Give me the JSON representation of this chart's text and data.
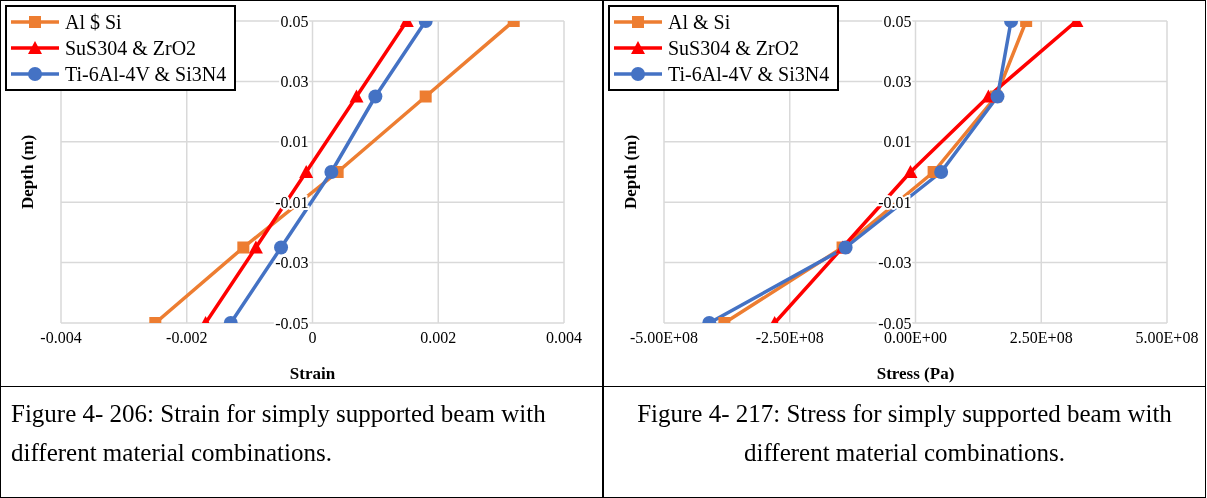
{
  "chart_data": [
    {
      "type": "line",
      "xlabel": "Strain",
      "ylabel": "Depth (m)",
      "legend": "top left",
      "grid": true,
      "xlim": [
        -0.004,
        0.004
      ],
      "xticks": [
        -0.004,
        -0.002,
        0,
        0.002,
        0.004
      ],
      "ylim": [
        -0.05,
        0.05
      ],
      "yticks": [
        -0.05,
        -0.03,
        -0.01,
        0.01,
        0.03,
        0.05
      ],
      "annotations": [
        "Figure 4- 206: Strain for simply supported beam with different material combinations."
      ],
      "series": [
        {
          "name": "Al $ Si",
          "color": "#ed7d31",
          "marker": "square",
          "x": [
            0.0032,
            0.0018,
            0.0004,
            -0.0011,
            -0.0025
          ],
          "values": [
            0.05,
            0.025,
            0,
            -0.025,
            -0.05
          ]
        },
        {
          "name": "SuS304 & ZrO2",
          "color": "#ff0000",
          "marker": "triangle",
          "x": [
            0.0015,
            0.0007,
            -0.0001,
            -0.0009,
            -0.0017
          ],
          "values": [
            0.05,
            0.025,
            0,
            -0.025,
            -0.05
          ]
        },
        {
          "name": "Ti-6Al-4V & Si3N4",
          "color": "#4472c4",
          "marker": "circle",
          "x": [
            0.0018,
            0.001,
            0.0003,
            -0.0005,
            -0.0013
          ],
          "values": [
            0.05,
            0.025,
            0,
            -0.025,
            -0.05
          ]
        }
      ]
    },
    {
      "type": "line",
      "xlabel": "Stress (Pa)",
      "ylabel": "Depth (m)",
      "legend": "top left",
      "grid": true,
      "xlim": [
        -500000000,
        500000000
      ],
      "xticks": [
        {
          "value": -500000000,
          "label": "-5.00E+08"
        },
        {
          "value": -250000000,
          "label": "-2.50E+08"
        },
        {
          "value": 0,
          "label": "0.00E+00"
        },
        {
          "value": 250000000,
          "label": "2.50E+08"
        },
        {
          "value": 500000000,
          "label": "5.00E+08"
        }
      ],
      "ylim": [
        -0.05,
        0.05
      ],
      "yticks": [
        -0.05,
        -0.03,
        -0.01,
        0.01,
        0.03,
        0.05
      ],
      "annotations": [
        "Figure 4- 217: Stress for simply supported beam with different material combinations."
      ],
      "series": [
        {
          "name": "Al & Si",
          "color": "#ed7d31",
          "marker": "square",
          "x": [
            220000000,
            160000000,
            36000000,
            -145000000,
            -380000000
          ],
          "values": [
            0.05,
            0.025,
            0,
            -0.025,
            -0.05
          ]
        },
        {
          "name": "SuS304 & ZrO2",
          "color": "#ff0000",
          "marker": "triangle",
          "x": [
            320000000,
            145000000,
            -10000000,
            -145000000,
            -280000000
          ],
          "values": [
            0.05,
            0.025,
            0,
            -0.025,
            -0.05
          ]
        },
        {
          "name": "Ti-6Al-4V & Si3N4",
          "color": "#4472c4",
          "marker": "circle",
          "x": [
            190000000,
            163000000,
            51000000,
            -139000000,
            -410000000
          ],
          "values": [
            0.05,
            0.025,
            0,
            -0.025,
            -0.05
          ]
        }
      ]
    }
  ]
}
